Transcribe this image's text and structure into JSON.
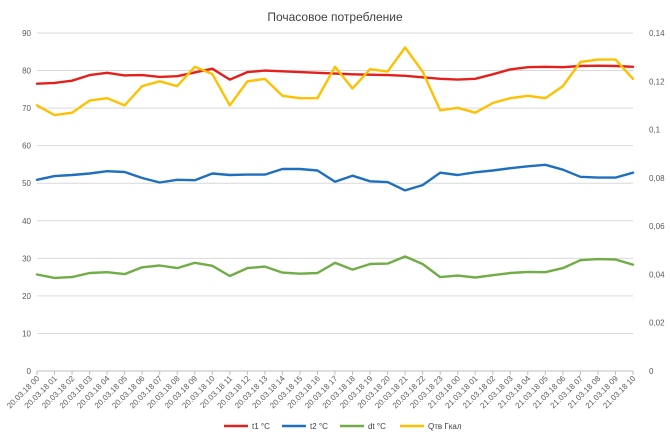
{
  "chart_data": {
    "type": "line",
    "title": "Почасовое потребление",
    "categories": [
      "20.03.18 00",
      "20.03.18 01",
      "20.03.18 02",
      "20.03.18 03",
      "20.03.18 04",
      "20.03.18 05",
      "20.03.18 06",
      "20.03.18 07",
      "20.03.18 08",
      "20.03.18 09",
      "20.03.18 10",
      "20.03.18 11",
      "20.03.18 12",
      "20.03.18 13",
      "20.03.18 14",
      "20.03.18 15",
      "20.03.18 16",
      "20.03.18 17",
      "20.03.18 18",
      "20.03.18 19",
      "20.03.18 20",
      "20.03.18 21",
      "20.03.18 22",
      "20.03.18 23",
      "21.03.18 00",
      "21.03.18 01",
      "21.03.18 02",
      "21.03.18 03",
      "21.03.18 04",
      "21.03.18 05",
      "21.03.18 06",
      "21.03.18 07",
      "21.03.18 08",
      "21.03.18 09",
      "21.03.18 10"
    ],
    "y_left": {
      "ticks": [
        "0",
        "10",
        "20",
        "30",
        "40",
        "50",
        "60",
        "70",
        "80",
        "90"
      ],
      "lim": [
        0,
        90
      ]
    },
    "y_right": {
      "ticks": [
        "0",
        "0,02",
        "0,04",
        "0,06",
        "0,08",
        "0,1",
        "0,12",
        "0,14"
      ],
      "lim": [
        0,
        0.14
      ]
    },
    "grid": true,
    "legend_position": "bottom",
    "series": [
      {
        "name": "t1 °C",
        "color": "#e3201c",
        "axis": "left",
        "values": [
          76.5,
          76.7,
          77.3,
          78.8,
          79.4,
          78.7,
          78.8,
          78.3,
          78.5,
          79.5,
          80.5,
          77.6,
          79.6,
          80.0,
          79.8,
          79.6,
          79.4,
          79.2,
          79.0,
          78.9,
          78.8,
          78.6,
          78.2,
          77.8,
          77.6,
          77.8,
          79.0,
          80.3,
          80.9,
          81.0,
          80.9,
          81.2,
          81.3,
          81.2,
          81.0
        ]
      },
      {
        "name": "t2 °C",
        "color": "#1f6fbf",
        "axis": "left",
        "values": [
          50.9,
          51.9,
          52.2,
          52.6,
          53.2,
          53.0,
          51.4,
          50.2,
          50.9,
          50.8,
          52.6,
          52.2,
          52.3,
          52.3,
          53.8,
          53.8,
          53.4,
          50.4,
          52.0,
          50.5,
          50.3,
          48.1,
          49.5,
          52.8,
          52.2,
          52.9,
          53.4,
          54.0,
          54.5,
          54.9,
          53.6,
          51.7,
          51.5,
          51.5,
          52.8
        ]
      },
      {
        "name": "dt °C",
        "color": "#70ad47",
        "axis": "left",
        "values": [
          25.7,
          24.8,
          25.0,
          26.1,
          26.3,
          25.8,
          27.6,
          28.1,
          27.4,
          28.8,
          28.0,
          25.3,
          27.4,
          27.8,
          26.2,
          25.9,
          26.1,
          28.8,
          27.0,
          28.5,
          28.6,
          30.5,
          28.5,
          25.0,
          25.4,
          24.9,
          25.5,
          26.1,
          26.4,
          26.3,
          27.4,
          29.5,
          29.8,
          29.7,
          28.3
        ]
      },
      {
        "name": "Qтв Гкал",
        "color": "#ffc000",
        "axis": "right",
        "values": [
          0.11,
          0.106,
          0.107,
          0.112,
          0.113,
          0.11,
          0.118,
          0.12,
          0.118,
          0.126,
          0.123,
          0.11,
          0.12,
          0.121,
          0.114,
          0.113,
          0.113,
          0.126,
          0.117,
          0.125,
          0.124,
          0.134,
          0.124,
          0.108,
          0.109,
          0.107,
          0.111,
          0.113,
          0.114,
          0.113,
          0.118,
          0.128,
          0.129,
          0.129,
          0.121
        ]
      }
    ]
  }
}
